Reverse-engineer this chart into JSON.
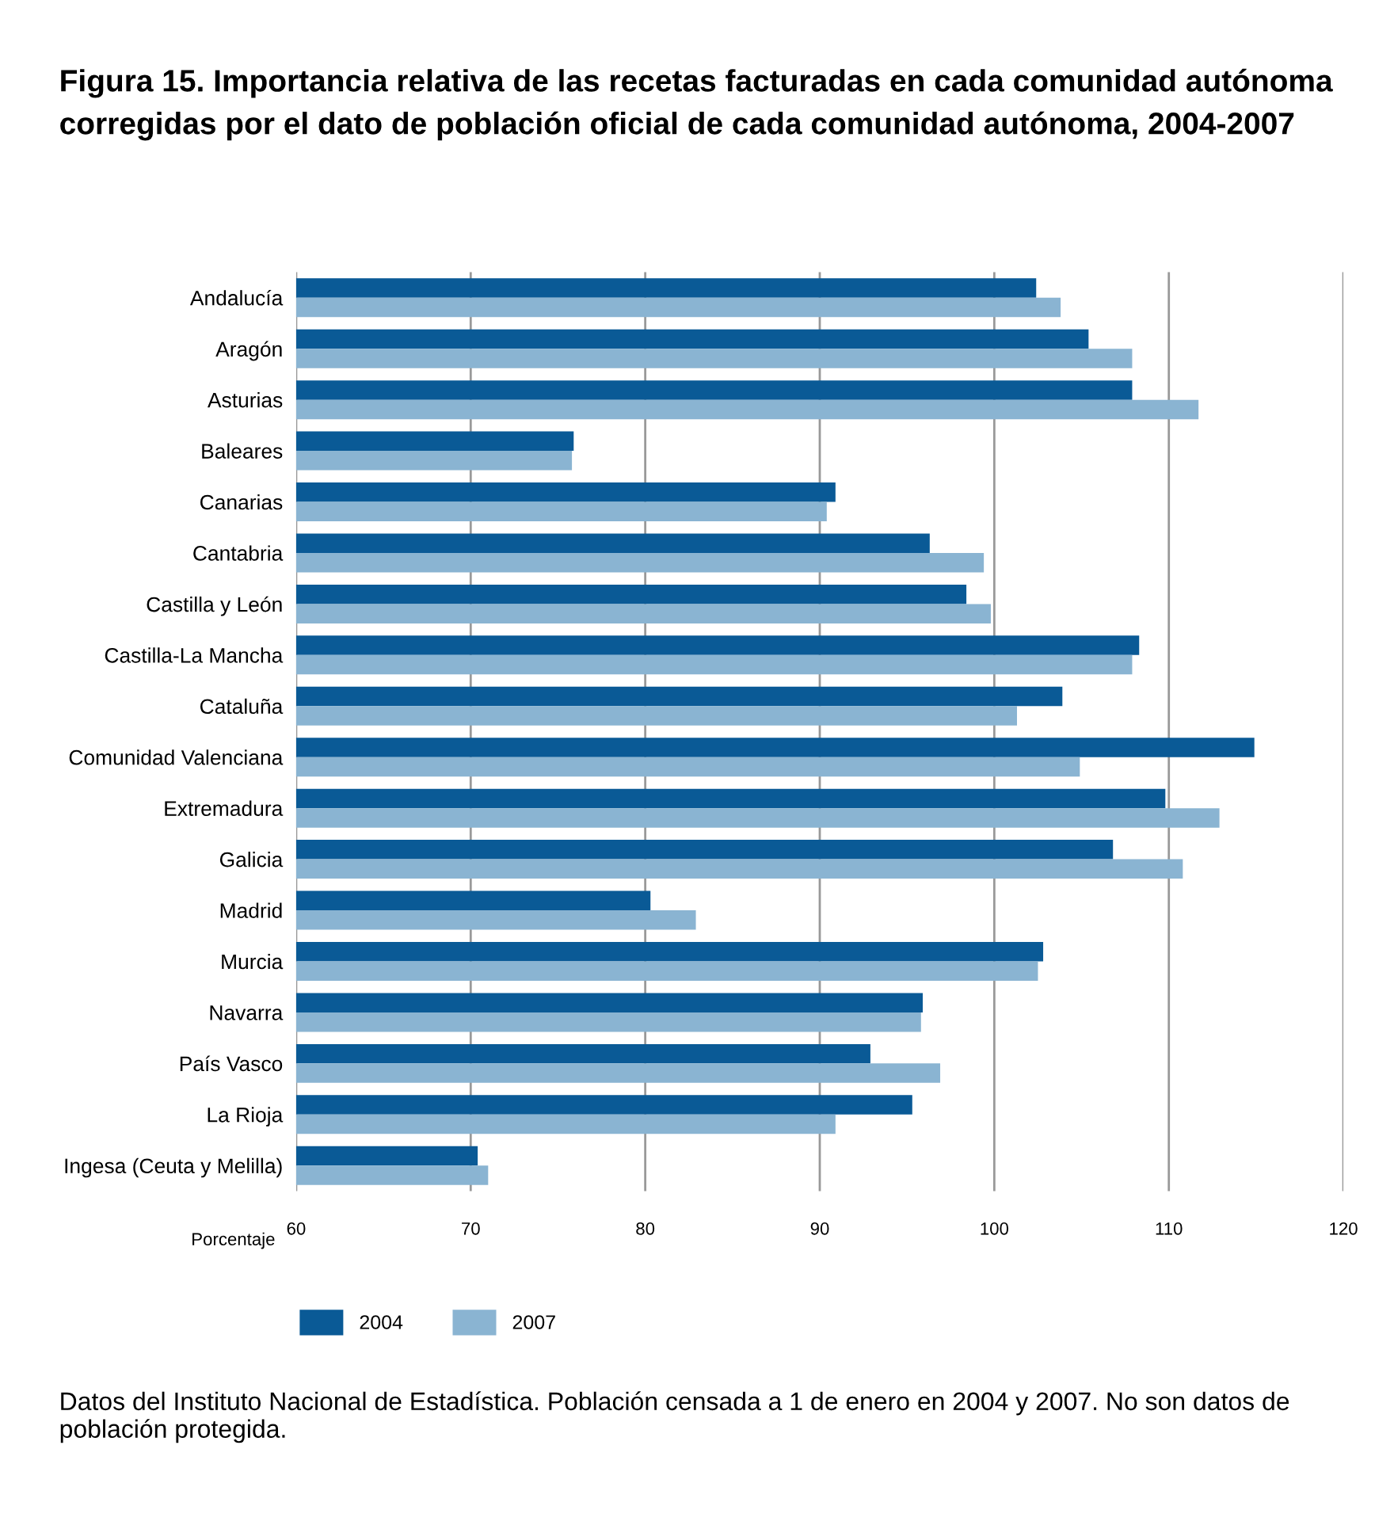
{
  "chart_data": {
    "type": "bar",
    "orientation": "horizontal",
    "title": "Figura 15. Importancia relativa de las recetas facturadas en cada comunidad autónoma corregidas por el dato de población oficial de cada comunidad autónoma, 2004-2007",
    "xlabel": "Porcentaje",
    "categories": [
      "Andalucía",
      "Aragón",
      "Asturias",
      "Baleares",
      "Canarias",
      "Cantabria",
      "Castilla y León",
      "Castilla-La Mancha",
      "Cataluña",
      "Comunidad Valenciana",
      "Extremadura",
      "Galicia",
      "Madrid",
      "Murcia",
      "Navarra",
      "País Vasco",
      "La Rioja",
      "Ingesa (Ceuta y Melilla)"
    ],
    "series": [
      {
        "name": "2004",
        "color": "#0a5a96",
        "values": [
          102.4,
          105.4,
          107.9,
          75.9,
          90.9,
          96.3,
          98.4,
          108.3,
          103.9,
          114.9,
          109.8,
          106.8,
          80.3,
          102.8,
          95.9,
          92.9,
          95.3,
          70.4
        ]
      },
      {
        "name": "2007",
        "color": "#8ab4d2",
        "values": [
          103.8,
          107.9,
          111.7,
          75.8,
          90.4,
          99.4,
          99.8,
          107.9,
          101.3,
          104.9,
          112.9,
          110.8,
          82.9,
          102.5,
          95.8,
          96.9,
          90.9,
          71.0
        ]
      }
    ],
    "xlim": [
      60,
      120
    ],
    "xticks": [
      60,
      70,
      80,
      90,
      100,
      110,
      120
    ],
    "grid": "x",
    "legend": "bottom",
    "annotations": [
      "Datos del Instituto Nacional de Estadística. Población censada a 1 de enero en 2004 y 2007. No son datos de población protegida."
    ]
  }
}
